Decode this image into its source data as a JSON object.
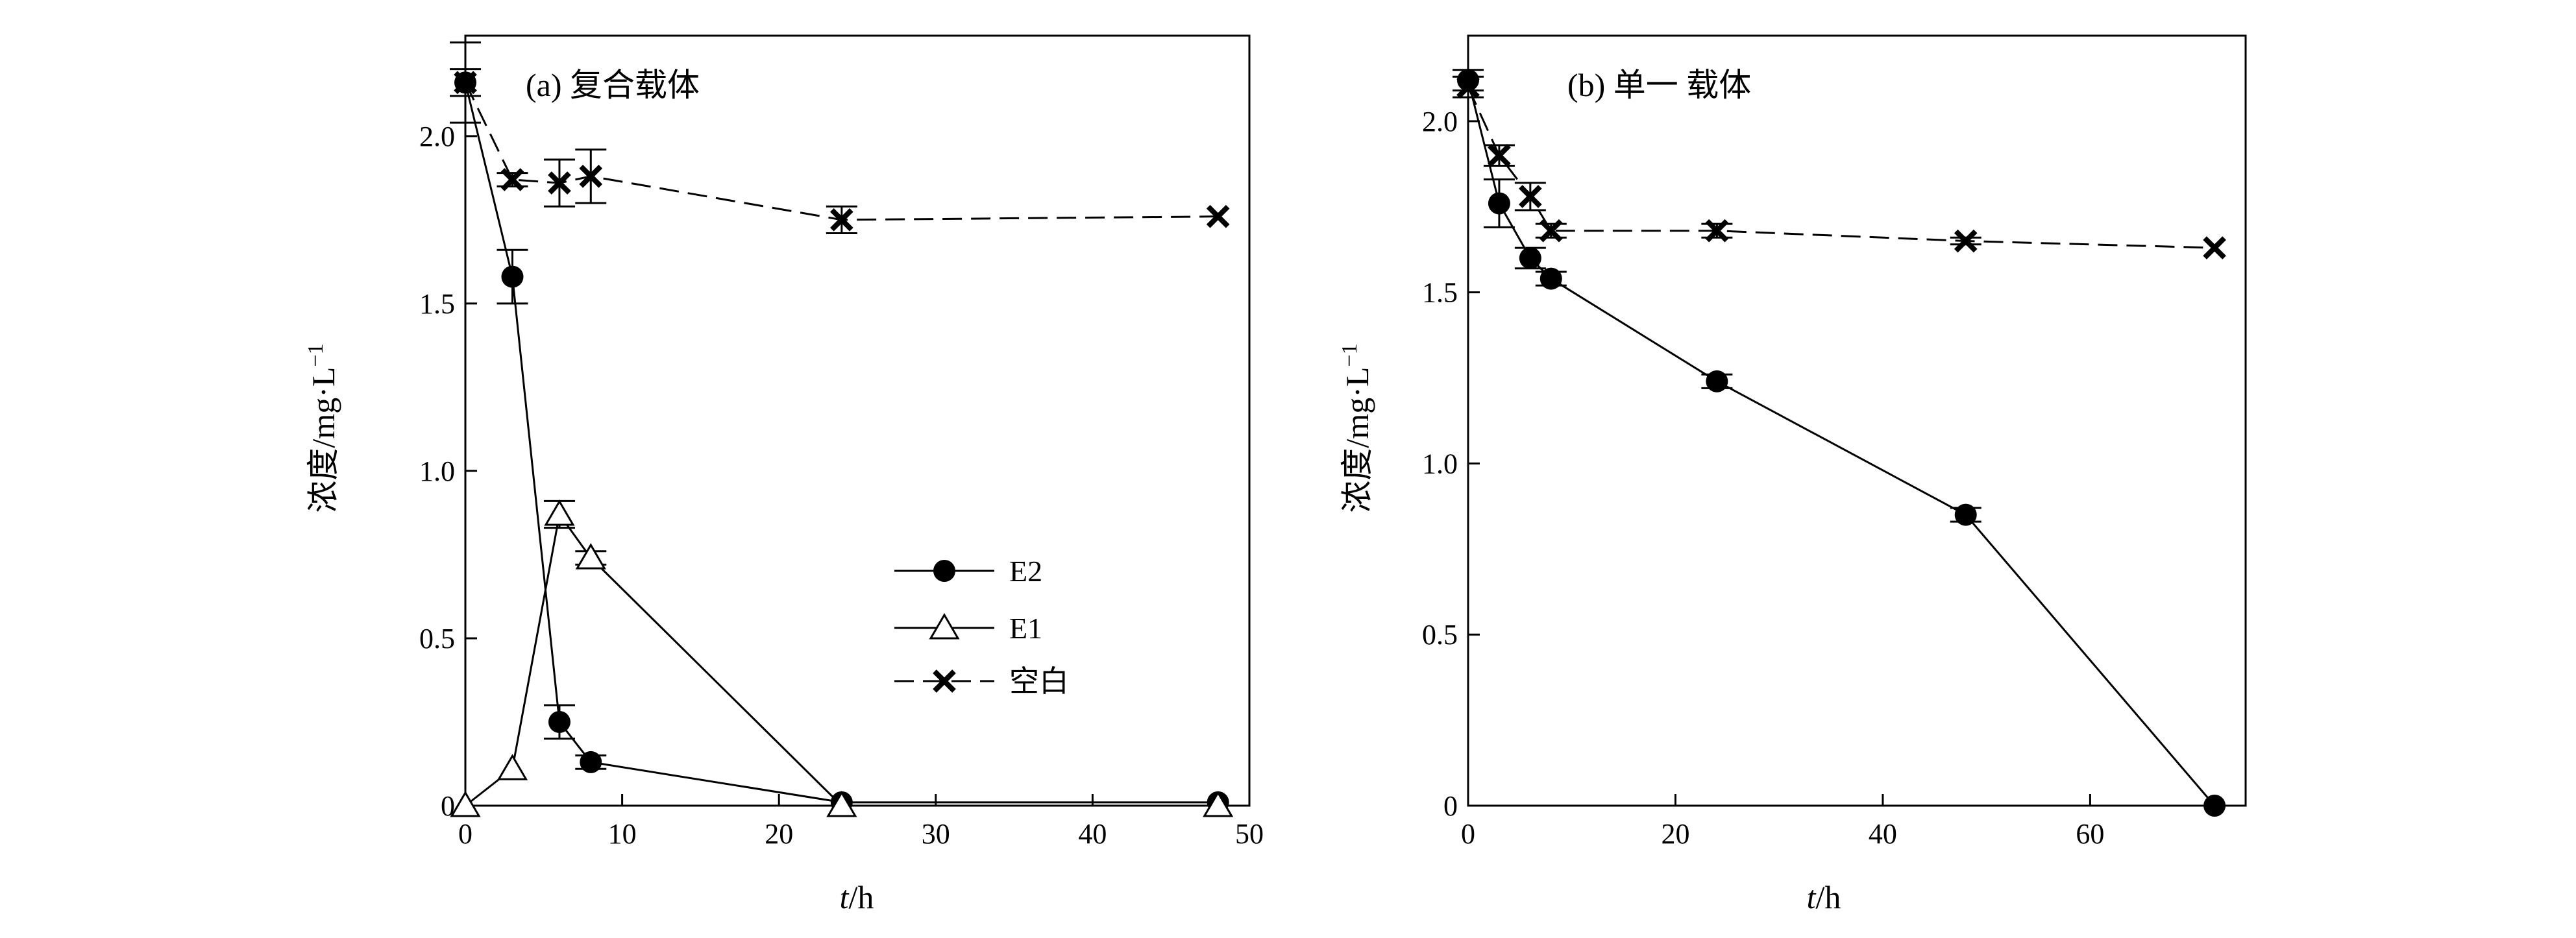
{
  "chart_data": [
    {
      "type": "line",
      "title": "(a) 复合载体",
      "xlabel": {
        "italic": "t",
        "rest": "/h"
      },
      "ylabel": {
        "main": "浓度/mg·L",
        "sup": "−1"
      },
      "xlim": [
        0,
        50
      ],
      "ylim": [
        0,
        2.3
      ],
      "xticks": [
        "0",
        "10",
        "20",
        "30",
        "40",
        "50"
      ],
      "yticks": [
        "0",
        "0.5",
        "1.0",
        "1.5",
        "2.0"
      ],
      "legend_position": "center-right",
      "series": [
        {
          "name": "E2",
          "marker": "filled-circle",
          "line": "solid",
          "x": [
            0,
            3,
            6,
            8,
            24,
            48
          ],
          "y": [
            2.16,
            1.58,
            0.25,
            0.13,
            0.01,
            0.01
          ],
          "err": [
            0.04,
            0.08,
            0.05,
            0.02,
            0.0,
            0.0
          ]
        },
        {
          "name": "E1",
          "marker": "open-triangle",
          "line": "solid",
          "x": [
            0,
            3,
            6,
            8,
            24,
            48
          ],
          "y": [
            0.0,
            0.11,
            0.87,
            0.74,
            0.0,
            0.0
          ],
          "err": [
            0.0,
            0.0,
            0.04,
            0.02,
            0.0,
            0.0
          ]
        },
        {
          "name": "空白",
          "marker": "x",
          "line": "dashed",
          "x": [
            0,
            3,
            6,
            8,
            24,
            48
          ],
          "y": [
            2.16,
            1.87,
            1.86,
            1.88,
            1.75,
            1.76
          ],
          "err": [
            0.12,
            0.02,
            0.07,
            0.08,
            0.04,
            0.0
          ]
        }
      ]
    },
    {
      "type": "line",
      "title": "(b) 单一 载体",
      "xlabel": {
        "italic": "t",
        "rest": "/h"
      },
      "ylabel": {
        "main": "浓度/mg·L",
        "sup": "−1"
      },
      "xlim": [
        0,
        75
      ],
      "ylim": [
        0,
        2.25
      ],
      "xticks": [
        "0",
        "20",
        "40",
        "60"
      ],
      "yticks": [
        "0",
        "0.5",
        "1.0",
        "1.5",
        "2.0"
      ],
      "series": [
        {
          "name": "E2",
          "marker": "filled-circle",
          "line": "solid",
          "x": [
            0,
            3,
            6,
            8,
            24,
            48,
            72
          ],
          "y": [
            2.12,
            1.76,
            1.6,
            1.54,
            1.24,
            0.85,
            0.0
          ],
          "err": [
            0.03,
            0.07,
            0.03,
            0.02,
            0.02,
            0.02,
            0.0
          ]
        },
        {
          "name": "空白",
          "marker": "x",
          "line": "dashed",
          "x": [
            0,
            3,
            6,
            8,
            24,
            48,
            72
          ],
          "y": [
            2.1,
            1.9,
            1.78,
            1.68,
            1.68,
            1.65,
            1.63
          ],
          "err": [
            0.03,
            0.03,
            0.04,
            0.02,
            0.02,
            0.01,
            0.0
          ]
        }
      ]
    }
  ]
}
